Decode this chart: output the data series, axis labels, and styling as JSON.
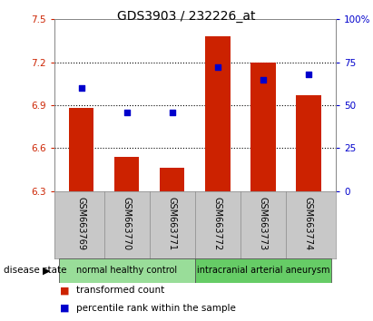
{
  "title": "GDS3903 / 232226_at",
  "samples": [
    "GSM663769",
    "GSM663770",
    "GSM663771",
    "GSM663772",
    "GSM663773",
    "GSM663774"
  ],
  "bar_values": [
    6.88,
    6.54,
    6.46,
    7.38,
    7.2,
    6.97
  ],
  "percentile_values": [
    60,
    46,
    46,
    72,
    65,
    68
  ],
  "bar_bottom": 6.3,
  "ylim_left": [
    6.3,
    7.5
  ],
  "ylim_right": [
    0,
    100
  ],
  "yticks_left": [
    6.3,
    6.6,
    6.9,
    7.2,
    7.5
  ],
  "ytick_labels_left": [
    "6.3",
    "6.6",
    "6.9",
    "7.2",
    "7.5"
  ],
  "yticks_right": [
    0,
    25,
    50,
    75,
    100
  ],
  "ytick_labels_right": [
    "0",
    "25",
    "50",
    "75",
    "100%"
  ],
  "bar_color": "#cc2200",
  "dot_color": "#0000cc",
  "grid_color": "#000000",
  "bg_color": "#ffffff",
  "plot_bg": "#ffffff",
  "sample_bg": "#c8c8c8",
  "group1_color": "#99dd99",
  "group2_color": "#66cc66",
  "groups": [
    {
      "label": "normal healthy control",
      "indices": [
        0,
        1,
        2
      ]
    },
    {
      "label": "intracranial arterial aneurysm",
      "indices": [
        3,
        4,
        5
      ]
    }
  ],
  "disease_state_label": "disease state",
  "legend_items": [
    {
      "color": "#cc2200",
      "label": "transformed count"
    },
    {
      "color": "#0000cc",
      "label": "percentile rank within the sample"
    }
  ],
  "title_fontsize": 10,
  "tick_fontsize": 7.5,
  "sample_fontsize": 7,
  "group_fontsize": 7,
  "legend_fontsize": 7.5
}
